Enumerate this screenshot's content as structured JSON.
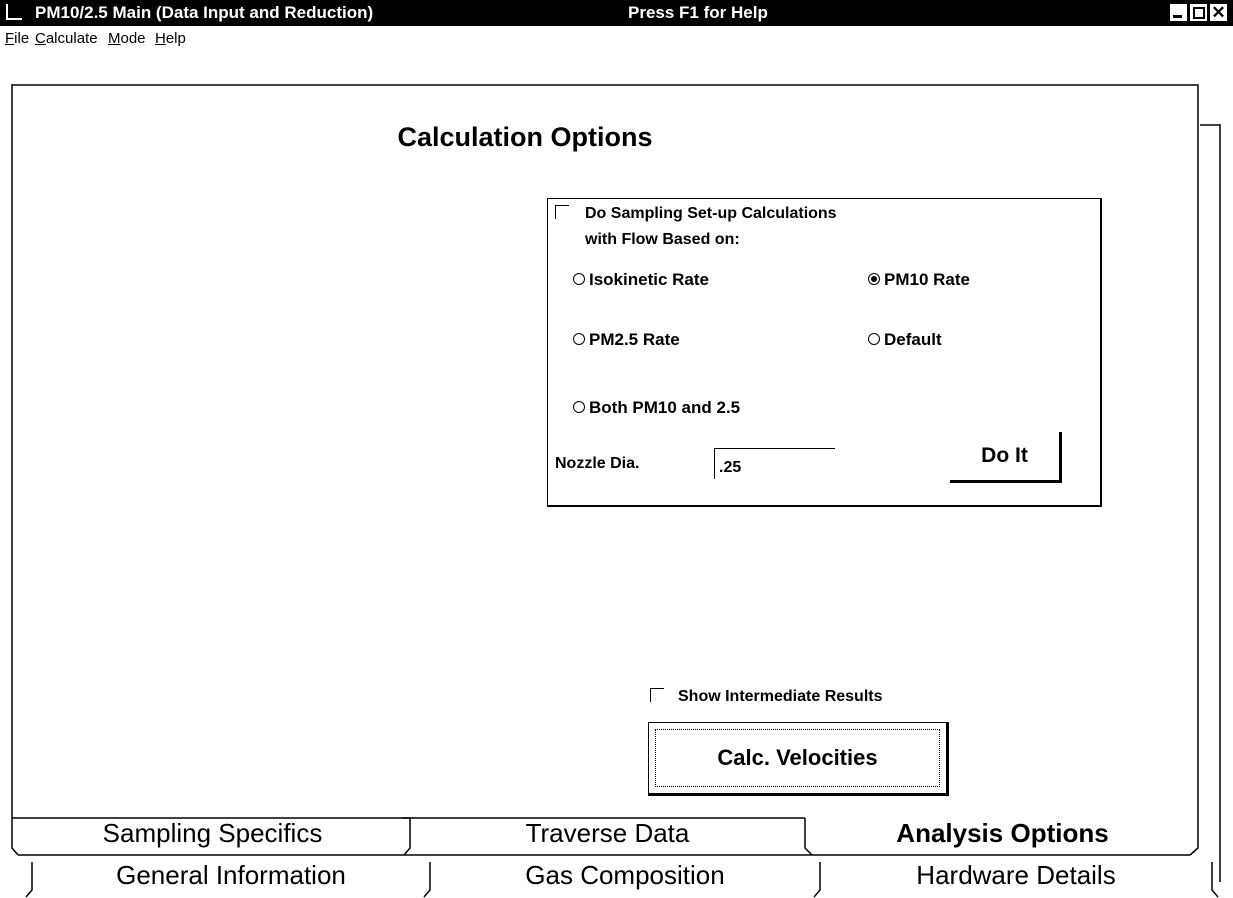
{
  "window": {
    "title": "PM10/2.5 Main (Data Input and Reduction)",
    "help_hint": "Press F1 for Help"
  },
  "menu": [
    "File",
    "Calculate",
    "Mode",
    "Help"
  ],
  "heading": "Calculation Options",
  "setup_group": {
    "checkbox": {
      "lines": [
        "Do Sampling Set-up Calculations",
        "with Flow Based on:"
      ],
      "checked": false
    },
    "options": [
      {
        "label": "Isokinetic Rate",
        "selected": false
      },
      {
        "label": "PM10 Rate",
        "selected": true
      },
      {
        "label": "PM2.5 Rate",
        "selected": false
      },
      {
        "label": "Default",
        "selected": false
      },
      {
        "label": "Both PM10 and 2.5",
        "selected": false
      }
    ],
    "nozzle_label": "Nozzle Dia.",
    "nozzle_value": ".25",
    "button": "Do It"
  },
  "intermediate_checkbox": {
    "label": "Show Intermediate Results",
    "checked": false
  },
  "calc_button": "Calc. Velocities",
  "tabs": {
    "row1": [
      "Sampling Specifics",
      "Traverse Data",
      "Analysis Options"
    ],
    "row2": [
      "General Information",
      "Gas Composition",
      "Hardware Details"
    ],
    "active": "Analysis Options"
  }
}
